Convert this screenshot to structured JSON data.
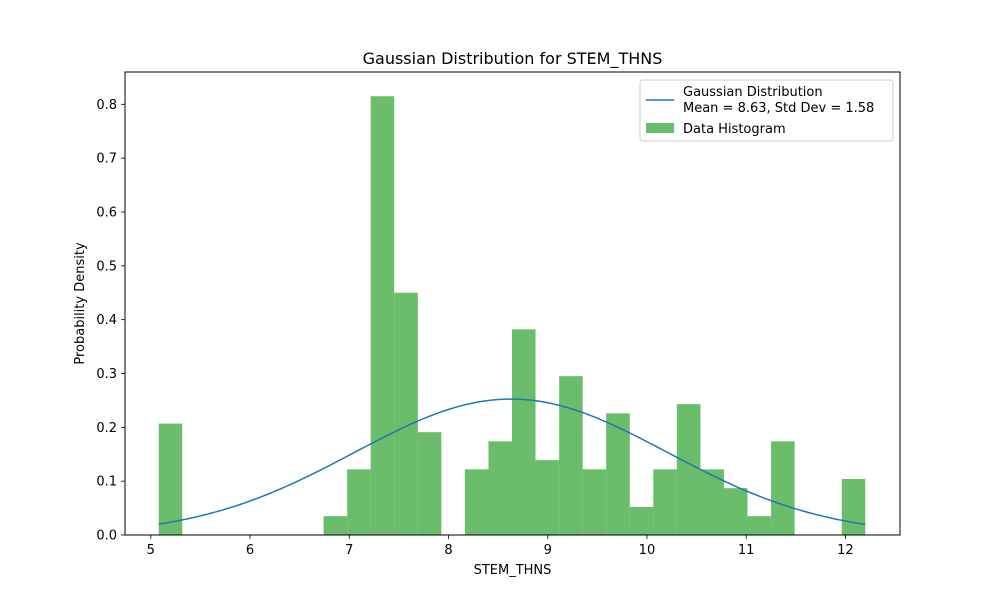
{
  "chart_data": {
    "type": "bar",
    "title": "Gaussian Distribution for STEM_THNS",
    "xlabel": "STEM_THNS",
    "ylabel": "Probability Density",
    "xlim": [
      4.74,
      12.55
    ],
    "ylim": [
      0,
      0.86
    ],
    "xticks": [
      5,
      6,
      7,
      8,
      9,
      10,
      11,
      12
    ],
    "yticks": [
      0.0,
      0.1,
      0.2,
      0.3,
      0.4,
      0.5,
      0.6,
      0.7,
      0.8
    ],
    "grid": false,
    "legend_position": "top-right",
    "bin_range": [
      5.08,
      12.2
    ],
    "bins": [
      {
        "x0": 5.08,
        "x1": 5.317,
        "density": 0.207
      },
      {
        "x0": 5.317,
        "x1": 5.555,
        "density": 0
      },
      {
        "x0": 5.555,
        "x1": 5.792,
        "density": 0
      },
      {
        "x0": 5.792,
        "x1": 6.029,
        "density": 0
      },
      {
        "x0": 6.029,
        "x1": 6.267,
        "density": 0
      },
      {
        "x0": 6.267,
        "x1": 6.504,
        "density": 0
      },
      {
        "x0": 6.504,
        "x1": 6.741,
        "density": 0
      },
      {
        "x0": 6.741,
        "x1": 6.979,
        "density": 0.035
      },
      {
        "x0": 6.979,
        "x1": 7.216,
        "density": 0.122
      },
      {
        "x0": 7.216,
        "x1": 7.453,
        "density": 0.815
      },
      {
        "x0": 7.453,
        "x1": 7.691,
        "density": 0.45
      },
      {
        "x0": 7.691,
        "x1": 7.928,
        "density": 0.191
      },
      {
        "x0": 7.928,
        "x1": 8.165,
        "density": 0
      },
      {
        "x0": 8.165,
        "x1": 8.403,
        "density": 0.122
      },
      {
        "x0": 8.403,
        "x1": 8.64,
        "density": 0.174
      },
      {
        "x0": 8.64,
        "x1": 8.877,
        "density": 0.382
      },
      {
        "x0": 8.877,
        "x1": 9.115,
        "density": 0.139
      },
      {
        "x0": 9.115,
        "x1": 9.352,
        "density": 0.295
      },
      {
        "x0": 9.352,
        "x1": 9.589,
        "density": 0.122
      },
      {
        "x0": 9.589,
        "x1": 9.827,
        "density": 0.226
      },
      {
        "x0": 9.827,
        "x1": 10.064,
        "density": 0.052
      },
      {
        "x0": 10.064,
        "x1": 10.301,
        "density": 0.122
      },
      {
        "x0": 10.301,
        "x1": 10.539,
        "density": 0.243
      },
      {
        "x0": 10.539,
        "x1": 10.776,
        "density": 0.122
      },
      {
        "x0": 10.776,
        "x1": 11.013,
        "density": 0.087
      },
      {
        "x0": 11.013,
        "x1": 11.251,
        "density": 0.035
      },
      {
        "x0": 11.251,
        "x1": 11.488,
        "density": 0.174
      },
      {
        "x0": 11.488,
        "x1": 11.725,
        "density": 0
      },
      {
        "x0": 11.725,
        "x1": 11.963,
        "density": 0
      },
      {
        "x0": 11.963,
        "x1": 12.2,
        "density": 0.104
      }
    ],
    "series": [
      {
        "name": "Gaussian Distribution\nMean = 8.63, Std Dev = 1.58",
        "type": "line",
        "mean": 8.63,
        "std": 1.58,
        "color": "#1f77b4"
      },
      {
        "name": "Data Histogram",
        "type": "bar",
        "color": "#2ca02c",
        "alpha": 0.7
      }
    ]
  }
}
